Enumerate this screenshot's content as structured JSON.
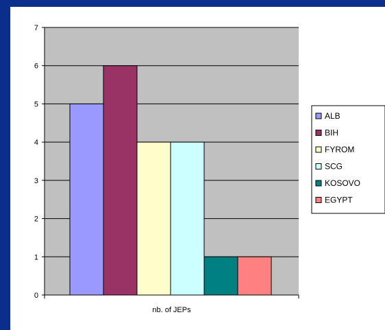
{
  "chart_data": {
    "type": "bar",
    "categories": [
      "nb. of JEPs"
    ],
    "series": [
      {
        "name": "ALB",
        "values": [
          5
        ],
        "color": "#9999ff"
      },
      {
        "name": "BIH",
        "values": [
          6
        ],
        "color": "#993366"
      },
      {
        "name": "FYROM",
        "values": [
          4
        ],
        "color": "#ffffcc"
      },
      {
        "name": "SCG",
        "values": [
          4
        ],
        "color": "#ccffff"
      },
      {
        "name": "KOSOVO",
        "values": [
          1
        ],
        "color": "#008080"
      },
      {
        "name": "EGYPT",
        "values": [
          1
        ],
        "color": "#ff8080"
      }
    ],
    "xlabel": "nb. of JEPs",
    "ylabel": "",
    "ylim": [
      0,
      7
    ],
    "yticks": [
      "0",
      "1",
      "2",
      "3",
      "4",
      "5",
      "6",
      "7"
    ],
    "grid": true,
    "plot_background": "#c0c0c0",
    "legend_position": "right"
  },
  "colors": {
    "slide_background": "#0b2d8c",
    "chart_background": "#ffffff"
  }
}
